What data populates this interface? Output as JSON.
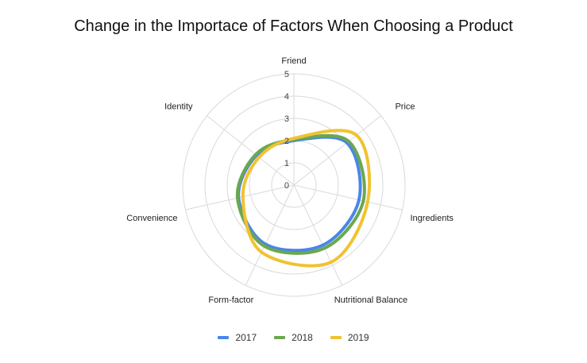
{
  "chart_data": {
    "type": "radar",
    "title": "Change in the Importace of Factors When Choosing a Product",
    "categories": [
      "Friend",
      "Price",
      "Ingredients",
      "Nutritional Balance",
      "Form-factor",
      "Convenience",
      "Identity"
    ],
    "rlim": [
      0,
      5
    ],
    "r_ticks": [
      "0",
      "1",
      "2",
      "3",
      "4",
      "5"
    ],
    "grid": true,
    "legend_position": "bottom",
    "series": [
      {
        "name": "2017",
        "color": "#4a86e8",
        "values": [
          2.0,
          3.05,
          3.0,
          3.0,
          2.95,
          2.55,
          2.15
        ]
      },
      {
        "name": "2018",
        "color": "#6aa84f",
        "values": [
          2.05,
          3.15,
          3.2,
          3.15,
          3.05,
          2.6,
          2.2
        ]
      },
      {
        "name": "2019",
        "color": "#f1c232",
        "values": [
          2.1,
          3.6,
          3.4,
          3.85,
          3.35,
          2.35,
          2.0
        ]
      }
    ]
  }
}
